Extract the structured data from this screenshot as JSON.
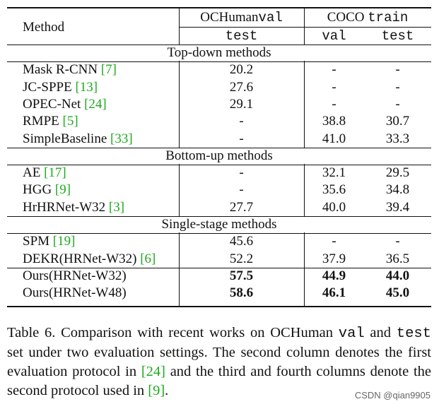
{
  "table": {
    "header": {
      "method": "Method",
      "ochuman": "OCHuman",
      "ochuman_split": "val",
      "ochuman_sub": "test",
      "coco": "COCO",
      "coco_split": "train",
      "coco_sub1": "val",
      "coco_sub2": "test"
    },
    "sections": [
      {
        "title": "Top-down methods",
        "rows": [
          {
            "name": "Mask R-CNN ",
            "cite": "[7]",
            "c1": "20.2",
            "c2": "-",
            "c3": "-",
            "bold": false
          },
          {
            "name": "JC-SPPE ",
            "cite": "[13]",
            "c1": "27.6",
            "c2": "-",
            "c3": "-",
            "bold": false
          },
          {
            "name": "OPEC-Net ",
            "cite": "[24]",
            "c1": "29.1",
            "c2": "-",
            "c3": "-",
            "bold": false
          },
          {
            "name": "RMPE ",
            "cite": "[5]",
            "c1": "-",
            "c2": "38.8",
            "c3": "30.7",
            "bold": false
          },
          {
            "name": "SimpleBaseline ",
            "cite": "[33]",
            "c1": "-",
            "c2": "41.0",
            "c3": "33.3",
            "bold": false
          }
        ]
      },
      {
        "title": "Bottom-up methods",
        "rows": [
          {
            "name": "AE ",
            "cite": "[17]",
            "c1": "-",
            "c2": "32.1",
            "c3": "29.5",
            "bold": false
          },
          {
            "name": "HGG ",
            "cite": "[9]",
            "c1": "-",
            "c2": "35.6",
            "c3": "34.8",
            "bold": false
          },
          {
            "name": "HrHRNet-W32 ",
            "cite": "[3]",
            "c1": "27.7",
            "c2": "40.0",
            "c3": "39.4",
            "bold": false
          }
        ]
      },
      {
        "title": "Single-stage methods",
        "rows": [
          {
            "name": "SPM ",
            "cite": "[19]",
            "c1": "45.6",
            "c2": "-",
            "c3": "-",
            "bold": false
          },
          {
            "name": "DEKR(HRNet-W32) ",
            "cite": "[6]",
            "c1": "52.2",
            "c2": "37.9",
            "c3": "36.5",
            "bold": false
          }
        ]
      }
    ],
    "ours": [
      {
        "name": "Ours(HRNet-W32)",
        "c1": "57.5",
        "c2": "44.9",
        "c3": "44.0"
      },
      {
        "name": "Ours(HRNet-W48)",
        "c1": "58.6",
        "c2": "46.1",
        "c3": "45.0"
      }
    ]
  },
  "caption": {
    "p1": "Table 6.  Comparison with recent works on OCHuman ",
    "m1": "val",
    "p2": " and ",
    "m2": "test",
    "p3": " set under two evaluation settings.  The second column denotes the first evaluation protocol in ",
    "c1": "[24]",
    "p4": " and the third and fourth columns denote the second protocol used in  ",
    "c2": "[9]",
    "p5": "."
  },
  "watermark": "CSDN @qian9905"
}
